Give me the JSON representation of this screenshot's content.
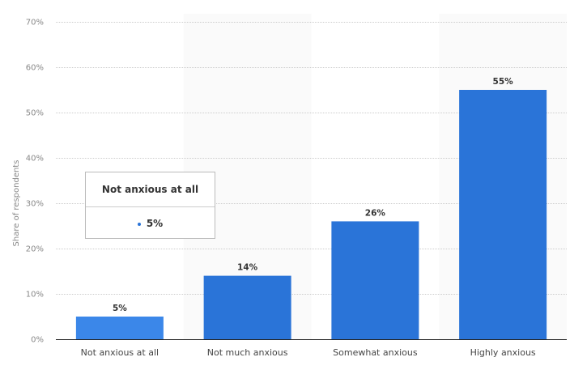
{
  "chart_data": {
    "type": "bar",
    "categories": [
      "Not anxious at all",
      "Not much anxious",
      "Somewhat anxious",
      "Highly anxious"
    ],
    "values": [
      5,
      14,
      26,
      55
    ],
    "data_labels": [
      "5%",
      "14%",
      "26%",
      "55%"
    ],
    "ylabel": "Share of respondents",
    "ylim": [
      0,
      70
    ],
    "yticks": [
      0,
      10,
      20,
      30,
      40,
      50,
      60,
      70
    ],
    "ytick_labels": [
      "0%",
      "10%",
      "20%",
      "30%",
      "40%",
      "50%",
      "60%",
      "70%"
    ],
    "grid": true,
    "highlighted_category": "Not anxious at all",
    "colors": {
      "bar": "#2a74d8",
      "bar_hover": "#3b87e9",
      "band": "#fafafa"
    }
  },
  "tooltip": {
    "title": "Not anxious at all",
    "value": "5%"
  }
}
